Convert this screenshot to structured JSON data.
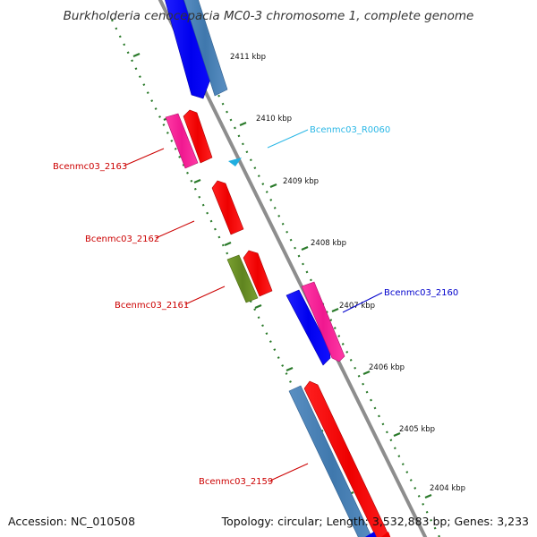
{
  "title": "Burkholderia cenocepacia MC0-3 chromosome 1, complete genome",
  "accession": "Accession: NC_010508",
  "summary": "Topology: circular; Length: 3,532,883 bp; Genes: 3,233",
  "colors": {
    "backbone": "#999999",
    "tick_marks": "#2a7a2a",
    "cds_forward": "#0000ff",
    "cds_forward_alt": "#4682b4",
    "cds_reverse": "#ff0000",
    "cds_reverse_alt": "#ff1493",
    "cds_olive": "#6b8e23",
    "rna": "#00bfff"
  },
  "ticks": [
    "2411 kbp",
    "2410 kbp",
    "2409 kbp",
    "2408 kbp",
    "2407 kbp",
    "2406 kbp",
    "2405 kbp",
    "2404 kbp"
  ],
  "gene_labels": [
    {
      "id": "Bcenmc03_R0060",
      "color": "#2ab7e6"
    },
    {
      "id": "Bcenmc03_2163",
      "color": "#cc0000"
    },
    {
      "id": "Bcenmc03_2162",
      "color": "#cc0000"
    },
    {
      "id": "Bcenmc03_2161",
      "color": "#cc0000"
    },
    {
      "id": "Bcenmc03_2160",
      "color": "#0000cc"
    },
    {
      "id": "Bcenmc03_2159",
      "color": "#cc0000"
    }
  ]
}
